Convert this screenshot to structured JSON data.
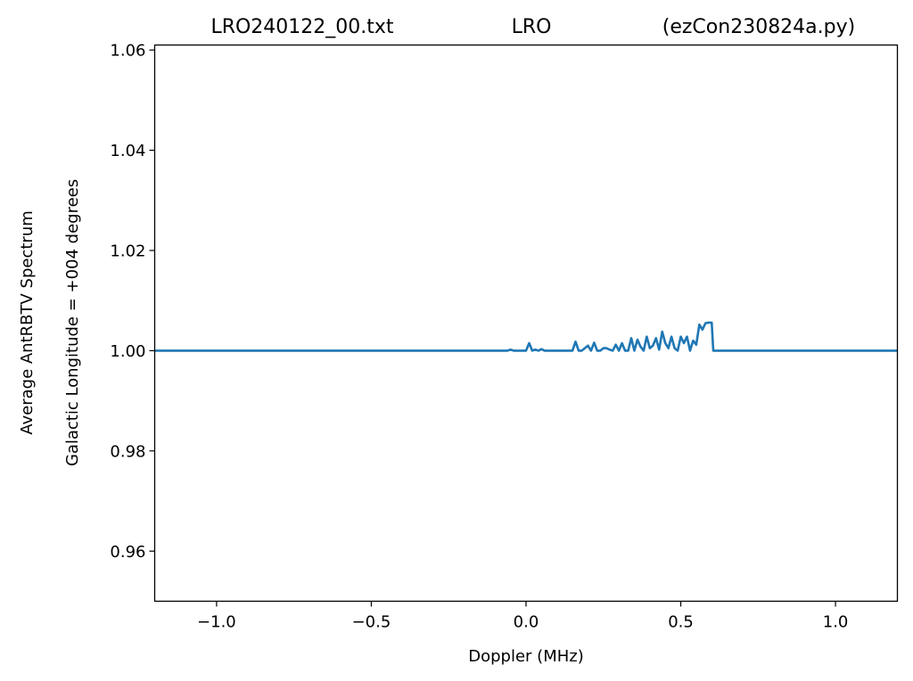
{
  "titles": {
    "left": "LRO240122_00.txt",
    "center": "LRO",
    "right": "(ezCon230824a.py)"
  },
  "chart_data": {
    "type": "line",
    "xlabel": "Doppler (MHz)",
    "ylabel": "Average AntRBTV Spectrum",
    "ylabel2": "Galactic Longitude = +004 degrees",
    "xlim": [
      -1.2,
      1.2
    ],
    "ylim": [
      0.95,
      1.061
    ],
    "xticks": [
      -1.0,
      -0.5,
      0.0,
      0.5,
      1.0
    ],
    "xtick_labels": [
      "−1.0",
      "−0.5",
      "0.0",
      "0.5",
      "1.0"
    ],
    "yticks": [
      0.96,
      0.98,
      1.0,
      1.02,
      1.04,
      1.06
    ],
    "ytick_labels": [
      "0.96",
      "0.98",
      "1.00",
      "1.02",
      "1.04",
      "1.06"
    ],
    "grid": false,
    "line_color": "#1f77b4",
    "series": [
      {
        "x": [
          -1.2,
          -0.06,
          -0.05,
          -0.04,
          -0.03,
          0.0,
          0.01,
          0.02,
          0.03,
          0.04,
          0.05,
          0.06,
          0.1,
          0.15,
          0.16,
          0.17,
          0.18,
          0.19,
          0.2,
          0.21,
          0.22,
          0.23,
          0.24,
          0.25,
          0.26,
          0.27,
          0.28,
          0.29,
          0.3,
          0.31,
          0.32,
          0.33,
          0.34,
          0.35,
          0.36,
          0.37,
          0.38,
          0.39,
          0.4,
          0.41,
          0.42,
          0.43,
          0.44,
          0.45,
          0.46,
          0.47,
          0.48,
          0.49,
          0.5,
          0.51,
          0.52,
          0.53,
          0.54,
          0.55,
          0.56,
          0.57,
          0.58,
          0.59,
          0.6,
          0.605,
          0.62,
          1.2
        ],
        "y": [
          1.0,
          1.0,
          1.0002,
          1.0,
          1.0,
          1.0,
          1.0015,
          1.0,
          1.0002,
          1.0,
          1.0003,
          1.0,
          1.0,
          1.0,
          1.0018,
          1.0,
          1.0,
          1.0005,
          1.001,
          1.0,
          1.0016,
          1.0,
          1.0,
          1.0005,
          1.0005,
          1.0002,
          1.0,
          1.0012,
          1.0,
          1.0015,
          1.0,
          1.0,
          1.0025,
          1.0,
          1.0022,
          1.0008,
          1.0,
          1.0028,
          1.0005,
          1.001,
          1.0025,
          1.0002,
          1.0038,
          1.0015,
          1.0005,
          1.0028,
          1.0005,
          1.0,
          1.0028,
          1.0015,
          1.0028,
          1.0,
          1.002,
          1.0012,
          1.0052,
          1.0042,
          1.0055,
          1.0056,
          1.0056,
          1.0,
          1.0,
          1.0
        ]
      }
    ]
  }
}
